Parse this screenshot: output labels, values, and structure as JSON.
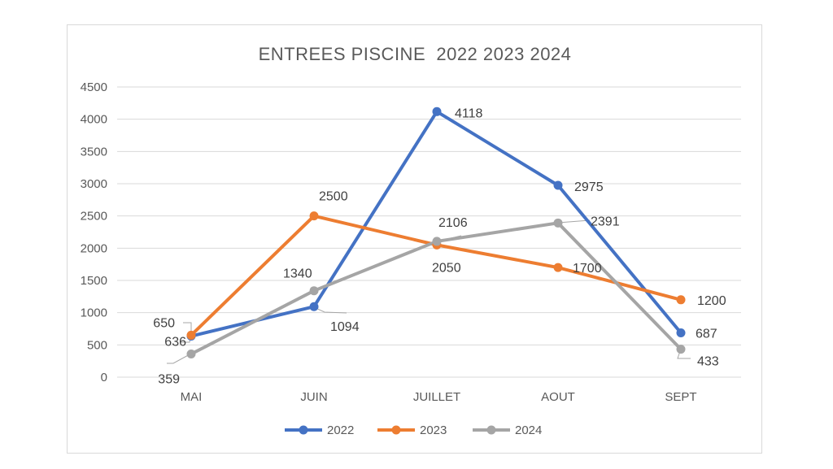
{
  "chart_data": {
    "type": "line",
    "title": "ENTREES PISCINE  2022 2023 2024",
    "categories": [
      "MAI",
      "JUIN",
      "JUILLET",
      "AOUT",
      "SEPT"
    ],
    "ylim": [
      0,
      4500
    ],
    "ytick_step": 500,
    "yticks": [
      "0",
      "500",
      "1000",
      "1500",
      "2000",
      "2500",
      "3000",
      "3500",
      "4000",
      "4500"
    ],
    "grid": true,
    "legend_position": "bottom",
    "series": [
      {
        "name": "2022",
        "color": "#4472c4",
        "values": [
          636,
          1094,
          4118,
          2975,
          687
        ]
      },
      {
        "name": "2023",
        "color": "#ed7d31",
        "values": [
          650,
          2500,
          2050,
          1700,
          1200
        ]
      },
      {
        "name": "2024",
        "color": "#a5a5a5",
        "values": [
          359,
          1340,
          2106,
          2391,
          433
        ]
      }
    ]
  }
}
